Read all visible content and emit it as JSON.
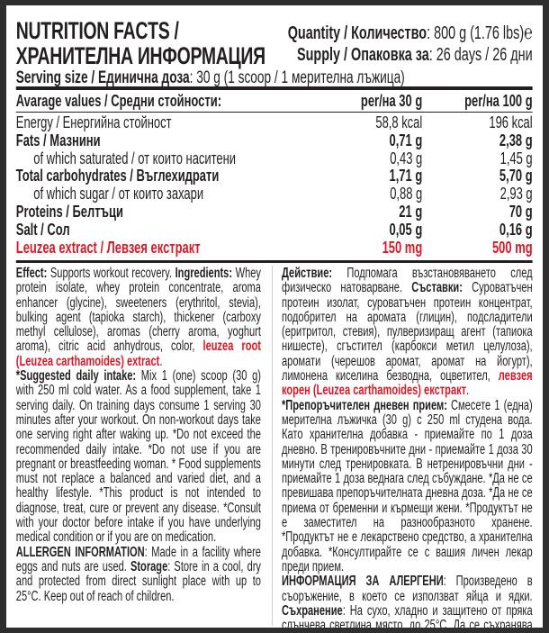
{
  "header": {
    "title_line1": "NUTRITION FACTS /",
    "title_line2": "ХРАНИТЕЛНА ИНФОРМАЦИЯ",
    "quantity_label": "Quantity / Количество",
    "quantity_value": ": 800 g (1.76 lbs)",
    "estimated_sign": "℮",
    "supply_label": "Supply / Опаковка за",
    "supply_value": ": 26 days / 26 дни",
    "serving_label": "Serving size / Единична доза",
    "serving_value": ": 30 g (1 scoop / 1 мерителна лъжица)"
  },
  "table": {
    "columns": [
      "Avarage values / Средни стойности:",
      "per/на 30 g",
      "per/на 100 g"
    ],
    "rows": [
      {
        "label": "Energy / Енергийна стойност",
        "per30": "58,8 kcal",
        "per100": "196 kcal",
        "style": ""
      },
      {
        "label": "Fats / Мазнини",
        "per30": "0,71 g",
        "per100": "2,38 g",
        "style": "b"
      },
      {
        "label": "of which saturated  / от които наситени",
        "per30": "0,43 g",
        "per100": "1,45 g",
        "style": "sub"
      },
      {
        "label": "Total carbohydrates / Въглехидрати",
        "per30": "1,71 g",
        "per100": "5,70 g",
        "style": "b"
      },
      {
        "label": "of which sugar / от които захари",
        "per30": "0,88 g",
        "per100": "2,93 g",
        "style": "sub"
      },
      {
        "label": "Proteins / Белтъци",
        "per30": "21 g",
        "per100": "70 g",
        "style": "b"
      },
      {
        "label": "Salt / Сол",
        "per30": "0,05 g",
        "per100": "0,16 g",
        "style": "b"
      },
      {
        "label": "Leuzea extract / Левзея екстракт",
        "per30": "150 mg",
        "per100": "500 mg",
        "style": "red"
      }
    ]
  },
  "colors": {
    "accent_red": "#d71a2a",
    "text": "#231f20",
    "frame": "#2e2e2e"
  },
  "english": [
    [
      {
        "t": "Effect:",
        "s": "b"
      },
      {
        "t": " Supports workout recovery. ",
        "s": ""
      },
      {
        "t": "Ingredients:",
        "s": "b"
      },
      {
        "t": " Whey protein isolate, whey protein concentrate, aroma enhancer (glycine), sweeteners (erythritol, stevia), bulking agent (tapioka starch), thickener (carboxy methyl cellulose), aromas (cherry aroma, yoghurt aroma), citric acid anhydrous, color, ",
        "s": ""
      },
      {
        "t": "leuzea root (Leuzea carthamoides) extract",
        "s": "r"
      },
      {
        "t": ".",
        "s": ""
      }
    ],
    [
      {
        "t": "*Suggested daily intake:",
        "s": "b"
      },
      {
        "t": " Mix 1 (one) scoop (30 g) with 250 ml cold water. As a food supplement, take 1 serving daily. On training days consume 1 serving 30 minutes after your workout. On non-workout days take one serving right after waking up. *Do not exceed the recommended daily intake. *Do not use if you are pregnant or breastfeeding woman. * Food supplements must not replace a balanced and varied diet, and a healthy lifestyle. *This product is not intended to diagnose, treat, cure or prevent any disease. *Consult with your doctor before intake if you have underlying medical condition or if you are on medication.",
        "s": ""
      }
    ],
    [
      {
        "t": "ALLERGEN INFORMATION",
        "s": "b"
      },
      {
        "t": ": Made in a facility where eggs and nuts are used. ",
        "s": ""
      },
      {
        "t": "Storage",
        "s": "b"
      },
      {
        "t": ": Store in a cool, dry and protected from direct sunlight place with up to 25°C. Keep out of reach of children.",
        "s": ""
      }
    ]
  ],
  "bulgarian": [
    [
      {
        "t": "Действие:",
        "s": "b"
      },
      {
        "t": " Подпомага възстановяването след физическо натоварване. ",
        "s": ""
      },
      {
        "t": "Съставки:",
        "s": "b"
      },
      {
        "t": " Суроватъчен протеин изолат, суроватъчен протеин концентрат, подобрител на аромата (глицин), подсладители (еритритол, стевия), пулверизиращ агент (тапиока нишесте), сгъстител (карбокси метил целулоза), аромати (черешов аромат, аромат на йогурт), лимонена киселина безводна, оцветител, ",
        "s": ""
      },
      {
        "t": "левзея корен (Leuzea carthamoides) екстракт",
        "s": "r"
      },
      {
        "t": ".",
        "s": ""
      }
    ],
    [
      {
        "t": "*Препоръчителен дневен прием:",
        "s": "b"
      },
      {
        "t": " Смесете 1 (една) мерителна лъжичка (30 g) с 250 ml студена вода. Като хранителна добавка - приемайте по 1 доза дневно. В тренировъчните дни - приемайте 1 доза 30 минути след тренировката. В нетренировъчни дни - приемайте 1 доза веднага след събуждане. *Да не се превишава препоръчителната дневна доза. *Да не се приема от бременни и кърмещи жени. *Продуктът не е заместител на разнообразното хранене. *Продуктът не е лекарствено средство, а хранителна добавка. *Консултирайте се с вашия личен лекар преди прием.",
        "s": ""
      }
    ],
    [
      {
        "t": "ИНФОРМАЦИЯ ЗА АЛЕРГЕНИ",
        "s": "b"
      },
      {
        "t": ": Произведено в съоръжение, в което се използват яйца и ядки. ",
        "s": ""
      },
      {
        "t": "Съхранение",
        "s": "b"
      },
      {
        "t": ": На сухо, хладно и защитено от пряка слънчева светлина място, до 25°C. Да се съхранява на места, недостъпни за малки деца.",
        "s": ""
      }
    ]
  ]
}
